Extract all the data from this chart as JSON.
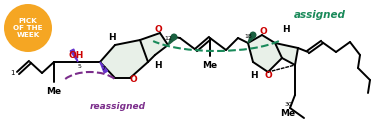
{
  "background_color": "#ffffff",
  "badge_color": "#F5A623",
  "badge_text": "PICK\nOF THE\nWEEK",
  "badge_text_color": "#ffffff",
  "assigned_text": "assigned",
  "assigned_color": "#1a8a5a",
  "reassigned_text": "reassigned",
  "reassigned_color": "#7B2D8B",
  "figsize": [
    3.81,
    1.31
  ],
  "dpi": 100
}
